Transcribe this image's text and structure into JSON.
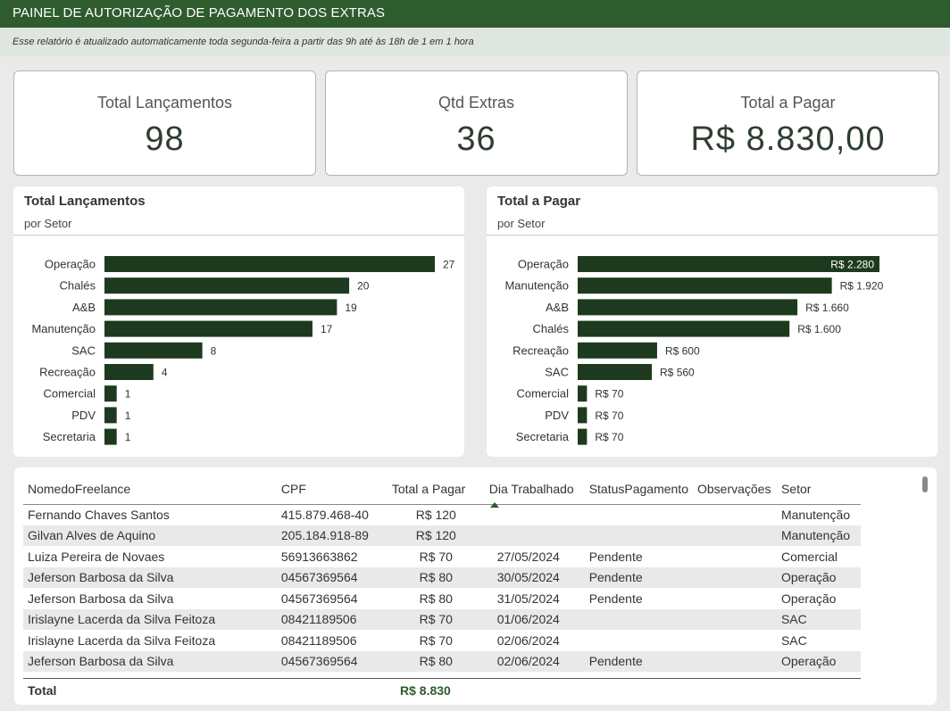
{
  "header": {
    "title": "PAINEL DE AUTORIZAÇÃO DE PAGAMENTO DOS EXTRAS",
    "subtitle": "Esse relatório é atualizado automaticamente toda segunda-feira a partir das 9h até às 18h de 1 em 1 hora"
  },
  "cards": [
    {
      "label": "Total Lançamentos",
      "value": "98"
    },
    {
      "label": "Qtd Extras",
      "value": "36"
    },
    {
      "label": "Total a Pagar",
      "value": "R$ 8.830,00"
    }
  ],
  "chart_data": [
    {
      "type": "bar",
      "orientation": "horizontal",
      "title": "Total Lançamentos",
      "subtitle": "por Setor",
      "categories": [
        "Operação",
        "Chalés",
        "A&B",
        "Manutenção",
        "SAC",
        "Recreação",
        "Comercial",
        "PDV",
        "Secretaria"
      ],
      "values": [
        27,
        20,
        19,
        17,
        8,
        4,
        1,
        1,
        1
      ],
      "value_labels": [
        "27",
        "20",
        "19",
        "17",
        "8",
        "4",
        "1",
        "1",
        "1"
      ],
      "color": "#1e3a1e"
    },
    {
      "type": "bar",
      "orientation": "horizontal",
      "title": "Total a Pagar",
      "subtitle": "por Setor",
      "categories": [
        "Operação",
        "Manutenção",
        "A&B",
        "Chalés",
        "Recreação",
        "SAC",
        "Comercial",
        "PDV",
        "Secretaria"
      ],
      "values": [
        2280,
        1920,
        1660,
        1600,
        600,
        560,
        70,
        70,
        70
      ],
      "value_labels": [
        "R$ 2.280",
        "R$ 1.920",
        "R$ 1.660",
        "R$ 1.600",
        "R$ 600",
        "R$ 560",
        "R$ 70",
        "R$ 70",
        "R$ 70"
      ],
      "color": "#1e3a1e"
    }
  ],
  "table": {
    "columns": [
      "NomedoFreelance",
      "CPF",
      "Total a Pagar",
      "Dia Trabalhado",
      "StatusPagamento",
      "Observações",
      "Setor"
    ],
    "rows": [
      [
        "Fernando Chaves Santos",
        "415.879.468-40",
        "R$ 120",
        "",
        "",
        "",
        "Manutenção"
      ],
      [
        "Gilvan Alves de Aquino",
        "205.184.918-89",
        "R$ 120",
        "",
        "",
        "",
        "Manutenção"
      ],
      [
        "Luiza Pereira de Novaes",
        "56913663862",
        "R$ 70",
        "27/05/2024",
        "Pendente",
        "",
        "Comercial"
      ],
      [
        "Jeferson Barbosa da Silva",
        "04567369564",
        "R$ 80",
        "30/05/2024",
        "Pendente",
        "",
        "Operação"
      ],
      [
        "Jeferson Barbosa da Silva",
        "04567369564",
        "R$ 80",
        "31/05/2024",
        "Pendente",
        "",
        "Operação"
      ],
      [
        "Irislayne Lacerda da Silva Feitoza",
        "08421189506",
        "R$ 70",
        "01/06/2024",
        "",
        "",
        "SAC"
      ],
      [
        "Irislayne Lacerda da Silva Feitoza",
        "08421189506",
        "R$ 70",
        "02/06/2024",
        "",
        "",
        "SAC"
      ],
      [
        "Jeferson Barbosa da Silva",
        "04567369564",
        "R$ 80",
        "02/06/2024",
        "Pendente",
        "",
        "Operação"
      ]
    ],
    "total_label": "Total",
    "total_value": "R$ 8.830"
  }
}
